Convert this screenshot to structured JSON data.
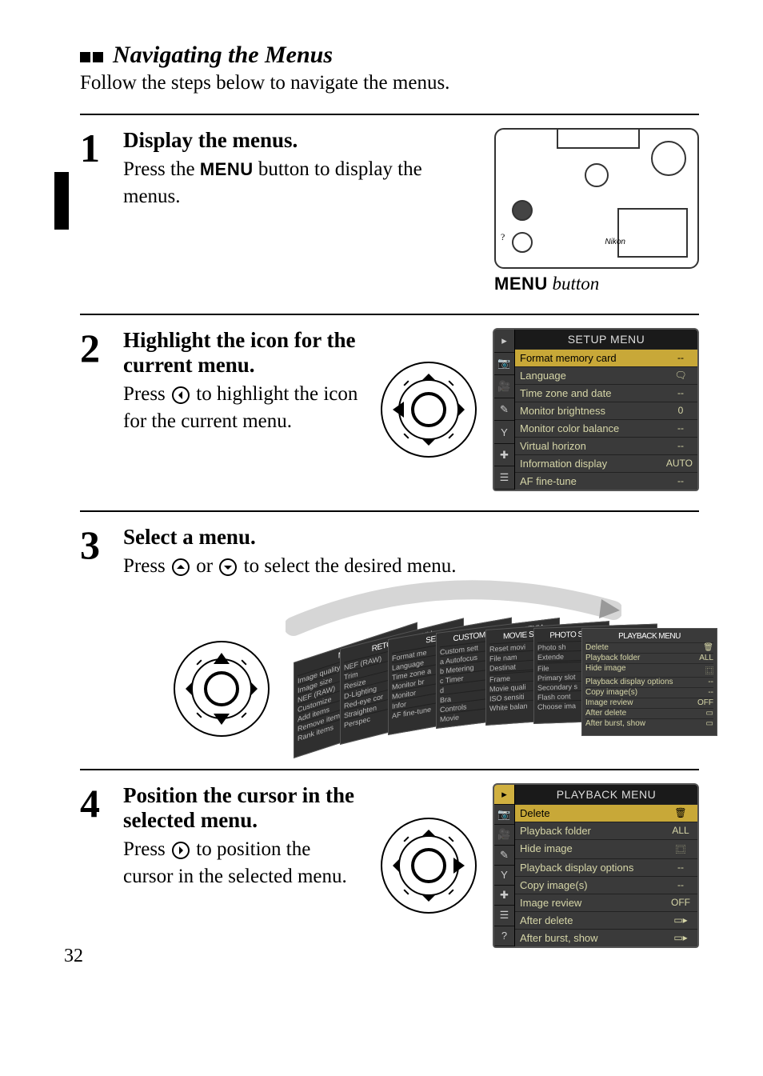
{
  "page_number": "32",
  "section_title": "Navigating the Menus",
  "intro": "Follow the steps below to navigate the menus.",
  "camera_brand": "Nikon",
  "menu_button_caption_prefix": "MENU",
  "menu_button_caption_suffix": " button",
  "steps": {
    "1": {
      "title": "Display the menus.",
      "text_before": "Press the ",
      "menu_word": "MENU",
      "text_after": " button to display the menus."
    },
    "2": {
      "title": "Highlight the icon for the current menu.",
      "text_before": "Press ",
      "text_after": " to highlight the icon for the current menu."
    },
    "3": {
      "title": "Select a menu.",
      "text_before": "Press ",
      "text_mid": " or ",
      "text_after": " to select the desired menu."
    },
    "4": {
      "title": "Position the cursor in the selected menu.",
      "text_before": "Press ",
      "text_after": " to position the cursor in the selected menu."
    }
  },
  "lcd_setup": {
    "title": "SETUP MENU",
    "tab_icons": [
      "▸",
      "📷",
      "🎥",
      "✎",
      "Y",
      "✚",
      "☰"
    ],
    "active_tab_index": -1,
    "highlight_index": 0,
    "rows": [
      {
        "label": "Format memory card",
        "value": "--"
      },
      {
        "label": "Language",
        "value": "🗨"
      },
      {
        "label": "Time zone and date",
        "value": "--"
      },
      {
        "label": "Monitor brightness",
        "value": "0"
      },
      {
        "label": "Monitor color balance",
        "value": "--"
      },
      {
        "label": "Virtual horizon",
        "value": "--"
      },
      {
        "label": "Information display",
        "value": "AUTO"
      },
      {
        "label": "AF fine-tune",
        "value": "--"
      }
    ]
  },
  "lcd_playback": {
    "title": "PLAYBACK MENU",
    "tab_icons": [
      "▸",
      "📷",
      "🎥",
      "✎",
      "Y",
      "✚",
      "☰",
      "?"
    ],
    "active_tab_index": 0,
    "highlight_index": 0,
    "rows": [
      {
        "label": "Delete",
        "value": "🗑"
      },
      {
        "label": "Playback folder",
        "value": "ALL"
      },
      {
        "label": "Hide image",
        "value": "⿴"
      },
      {
        "label": "Playback display options",
        "value": "--"
      },
      {
        "label": "Copy image(s)",
        "value": "--"
      },
      {
        "label": "Image review",
        "value": "OFF"
      },
      {
        "label": "After delete",
        "value": "▭▸"
      },
      {
        "label": "After burst, show",
        "value": "▭▸"
      }
    ]
  },
  "fan_cards": [
    {
      "title": "MY MENU",
      "items": [
        "Image quality",
        "Image size",
        "NEF (RAW)",
        "Customize",
        "Add items",
        "Remove item",
        "Rank items"
      ]
    },
    {
      "title": "RETOUCH MENU",
      "items": [
        "NEF (RAW)",
        "Trim",
        "Resize",
        "D-Lighting",
        "Red-eye cor",
        "Straighten",
        "Perspec"
      ]
    },
    {
      "title": "SETUP MENU",
      "items": [
        "Format me",
        "Language",
        "Time zone a",
        "Monitor br",
        "Monitor",
        "Infor",
        "AF fine-tune"
      ]
    },
    {
      "title": "CUSTOM SETTING MENU",
      "items": [
        "Custom sett",
        "a Autofocus",
        "b Metering",
        "c Timer",
        "d",
        "Bra",
        "Controls",
        "Movie"
      ]
    },
    {
      "title": "MOVIE SHOOTING MENU",
      "items": [
        "Reset movi",
        "File nam",
        "Destinat",
        "",
        "Frame",
        "Movie quali",
        "ISO sensiti",
        "White balan"
      ]
    },
    {
      "title": "PHOTO SHOOTING MENU",
      "items": [
        "Photo sh",
        "Extende",
        "",
        "File",
        "Primary slot",
        "Secondary s",
        "Flash cont",
        "Choose ima"
      ]
    },
    {
      "title": "PLAYBACK MENU",
      "items": [
        "Delete",
        "Playback folder",
        "Hide image",
        "Playback display options",
        "Copy image(s)",
        "Image review",
        "After delete",
        "After burst, show"
      ],
      "values": [
        "🗑",
        "ALL",
        "⿴",
        "--",
        "--",
        "OFF",
        "▭",
        "▭"
      ]
    }
  ],
  "colors": {
    "paper": "#ffffff",
    "text": "#000000",
    "lcd_bg": "#3a3a3a",
    "lcd_highlight": "#c8a838",
    "lcd_text": "#d6d6a8"
  }
}
